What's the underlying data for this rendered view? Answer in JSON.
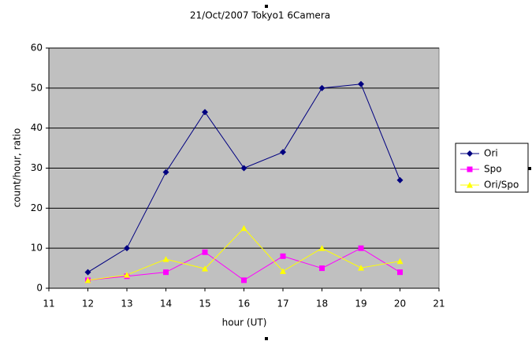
{
  "chart_data": {
    "type": "line",
    "title": "21/Oct/2007 Tokyo1 6Camera",
    "x_label": "hour (UT)",
    "y_label": "count/hour, ratio",
    "x": [
      12,
      13,
      14,
      15,
      16,
      17,
      18,
      19,
      20
    ],
    "series": [
      {
        "name": "Ori",
        "color": "#000080",
        "marker": "diamond",
        "values": [
          4,
          10,
          29,
          44,
          30,
          34,
          50,
          51,
          27
        ]
      },
      {
        "name": "Spo",
        "color": "#ff00ff",
        "marker": "square",
        "values": [
          2,
          3,
          4,
          9,
          2,
          8,
          5,
          10,
          4
        ]
      },
      {
        "name": "Ori/Spo",
        "color": "#ffff00",
        "marker": "triangle",
        "values": [
          2,
          3.33,
          7.25,
          4.89,
          15,
          4.25,
          10,
          5.1,
          6.75
        ]
      }
    ],
    "xlim": [
      11,
      21
    ],
    "xticks": [
      11,
      12,
      13,
      14,
      15,
      16,
      17,
      18,
      19,
      20,
      21
    ],
    "ylim": [
      0,
      60
    ],
    "yticks": [
      0,
      10,
      20,
      30,
      40,
      50,
      60
    ],
    "grid": true,
    "legend": "right"
  }
}
